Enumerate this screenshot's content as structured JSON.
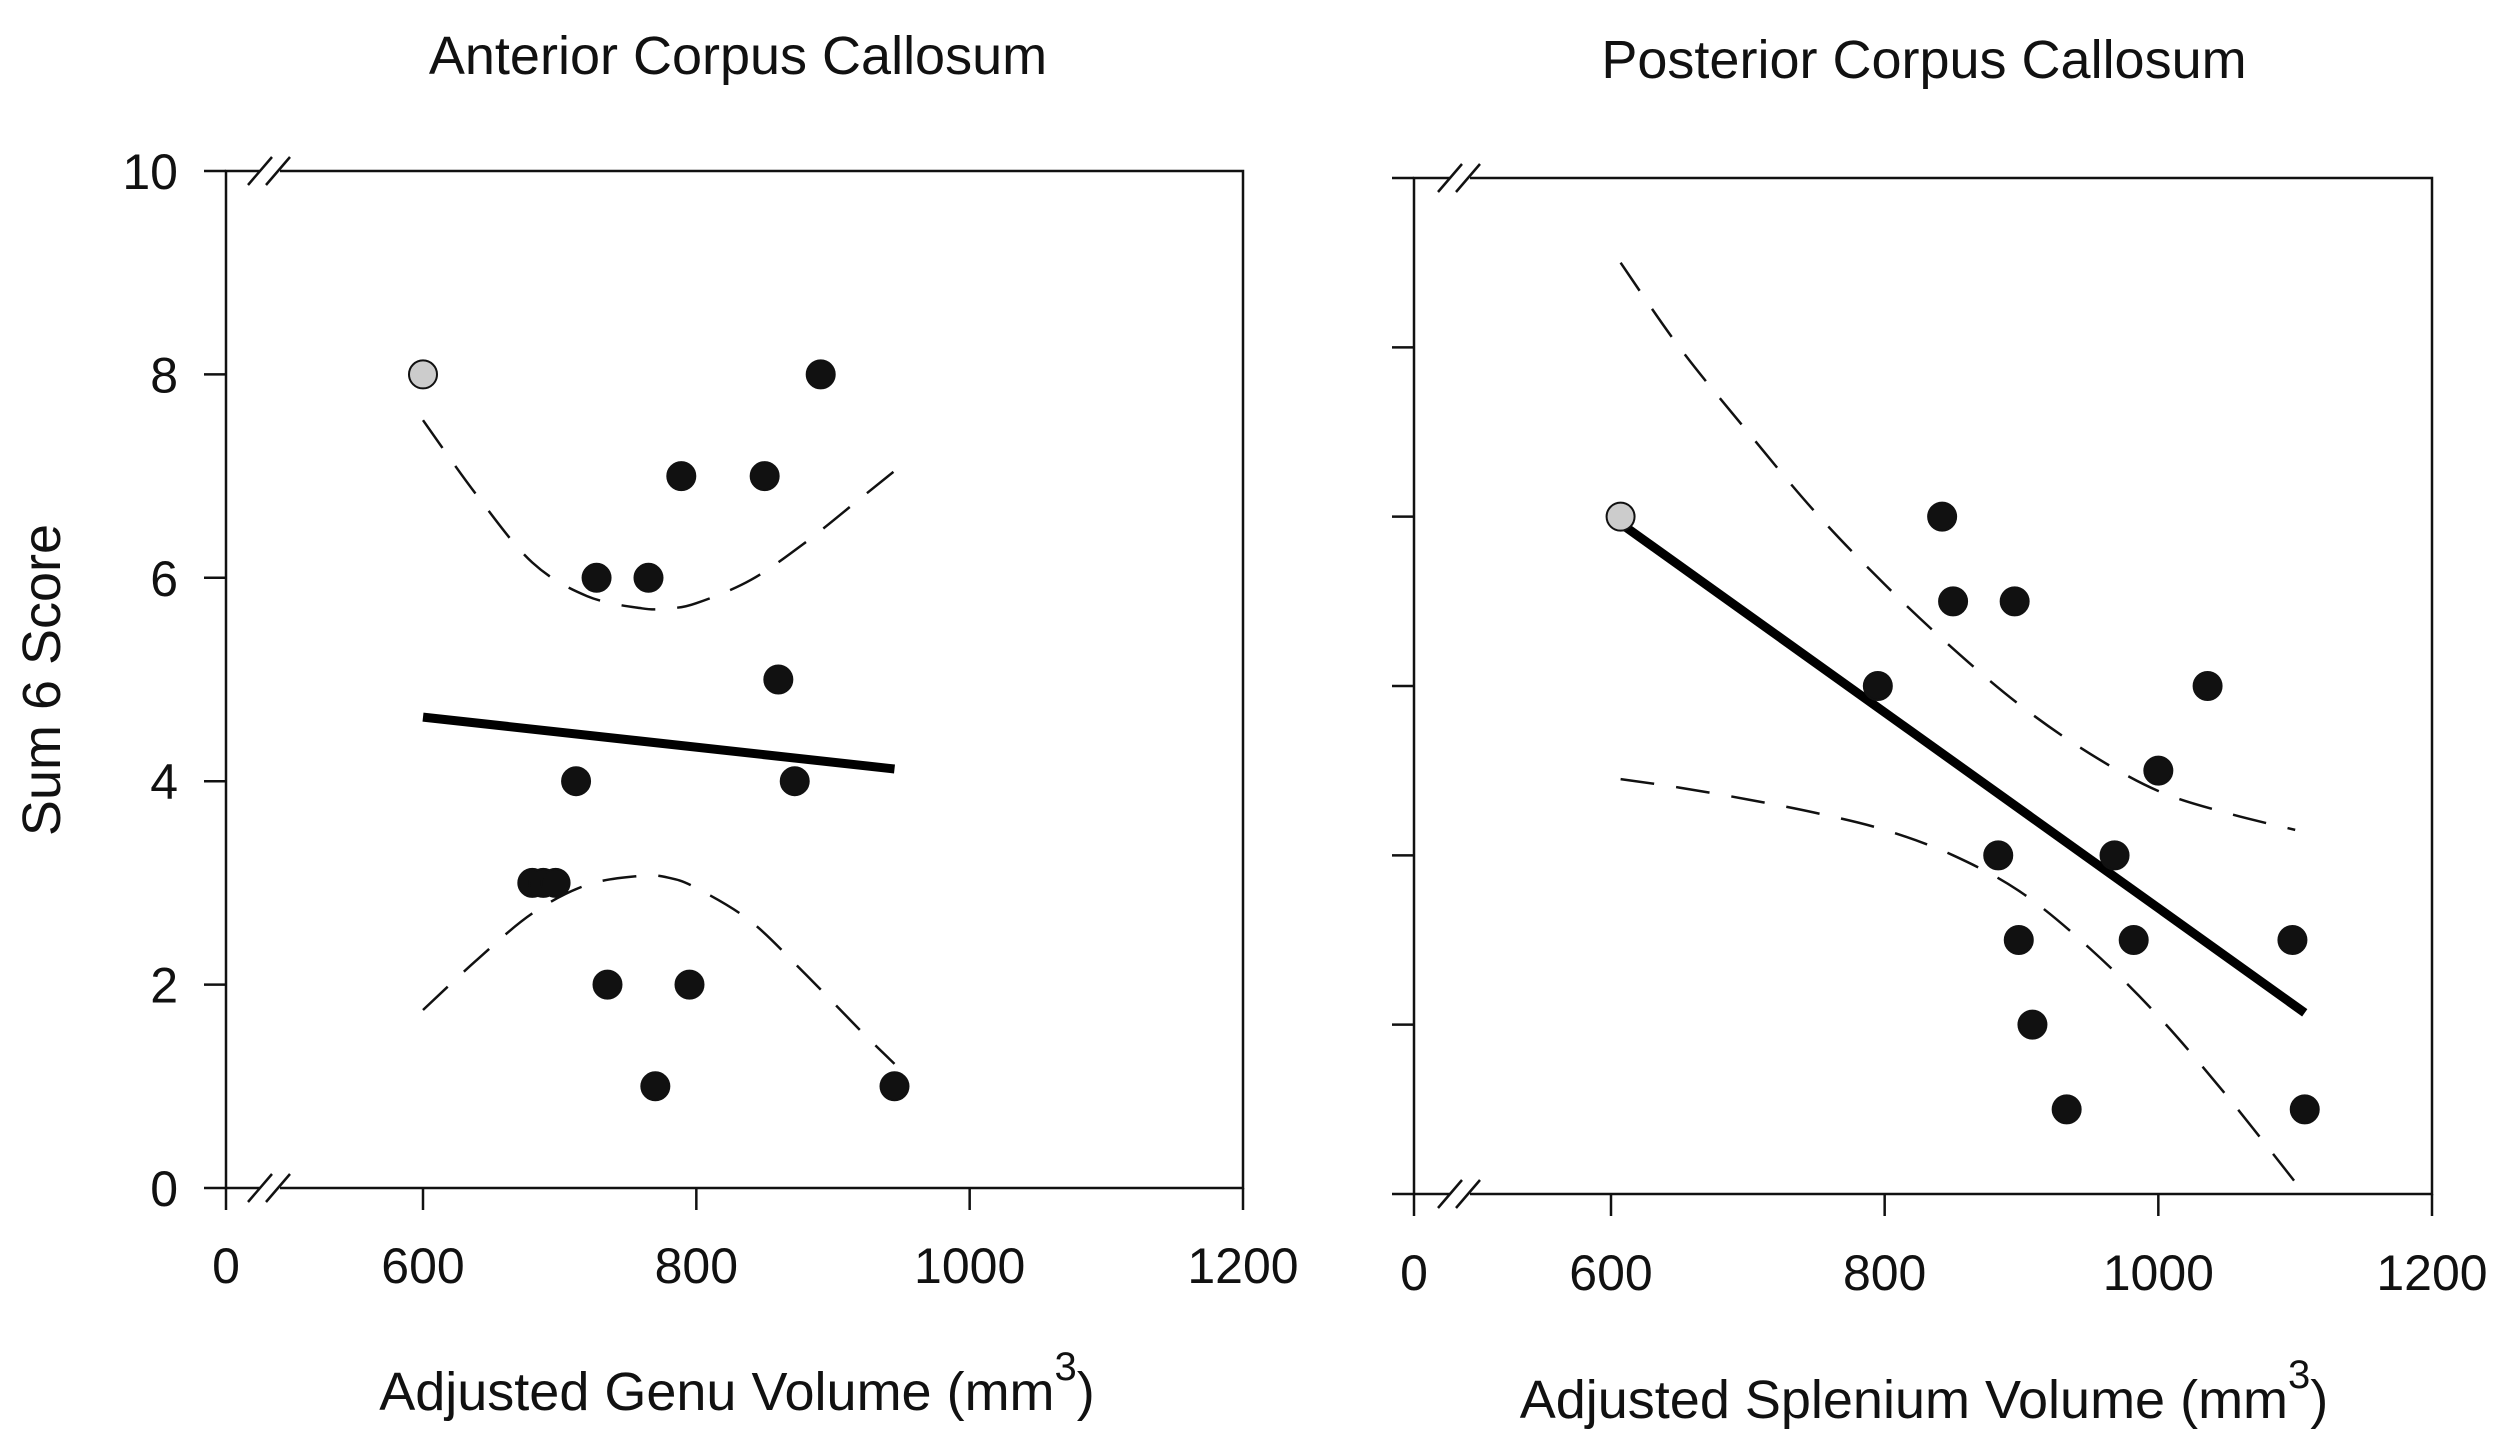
{
  "chart_data": [
    {
      "type": "scatter",
      "title": "Anterior Corpus Callosum",
      "xlabel": "Adjusted Genu Volume (mm",
      "xlabel_superscript": "3",
      "xlabel_suffix": ")",
      "ylabel": "Sum 6 Score",
      "xlim": [
        0,
        1200
      ],
      "ylim": [
        0,
        10
      ],
      "x_ticks": [
        0,
        600,
        800,
        1000,
        1200
      ],
      "x_tick_labels": [
        "0",
        "600",
        "800",
        "1000",
        "1200"
      ],
      "y_ticks": [
        0,
        2,
        4,
        6,
        8,
        10
      ],
      "y_tick_labels": [
        "0",
        "2",
        "4",
        "6",
        "8",
        "10"
      ],
      "show_y_tick_labels": true,
      "axis_break": true,
      "grid": false,
      "points": [
        {
          "x": 600,
          "y": 8,
          "color": "#cccccc"
        },
        {
          "x": 680,
          "y": 3,
          "color": "#111111"
        },
        {
          "x": 688,
          "y": 3,
          "color": "#111111"
        },
        {
          "x": 697,
          "y": 3,
          "color": "#111111"
        },
        {
          "x": 712,
          "y": 4,
          "color": "#111111"
        },
        {
          "x": 727,
          "y": 6,
          "color": "#111111"
        },
        {
          "x": 735,
          "y": 2,
          "color": "#111111"
        },
        {
          "x": 765,
          "y": 6,
          "color": "#111111"
        },
        {
          "x": 770,
          "y": 1,
          "color": "#111111"
        },
        {
          "x": 789,
          "y": 7,
          "color": "#111111"
        },
        {
          "x": 795,
          "y": 2,
          "color": "#111111"
        },
        {
          "x": 850,
          "y": 7,
          "color": "#111111"
        },
        {
          "x": 860,
          "y": 5,
          "color": "#111111"
        },
        {
          "x": 872,
          "y": 4,
          "color": "#111111"
        },
        {
          "x": 891,
          "y": 8,
          "color": "#111111"
        },
        {
          "x": 945,
          "y": 1,
          "color": "#111111"
        }
      ],
      "regression_line": {
        "x": [
          600,
          945
        ],
        "y": [
          4.63,
          4.12
        ]
      },
      "confidence_band_upper": {
        "x": [
          600,
          640,
          680,
          720,
          760,
          780,
          800,
          840,
          880,
          920,
          945
        ],
        "y": [
          7.55,
          6.8,
          6.15,
          5.82,
          5.7,
          5.7,
          5.75,
          5.98,
          6.35,
          6.78,
          7.05
        ]
      },
      "confidence_band_lower": {
        "x": [
          600,
          640,
          680,
          720,
          760,
          780,
          800,
          840,
          880,
          920,
          945
        ],
        "y": [
          1.75,
          2.25,
          2.7,
          2.98,
          3.07,
          3.05,
          2.95,
          2.62,
          2.1,
          1.55,
          1.22
        ]
      }
    },
    {
      "type": "scatter",
      "title": "Posterior Corpus Callosum",
      "xlabel": "Adjusted Splenium Volume (mm",
      "xlabel_superscript": "3",
      "xlabel_suffix": ")",
      "ylabel": "",
      "xlim": [
        0,
        1200
      ],
      "ylim": [
        0,
        6
      ],
      "x_ticks": [
        0,
        600,
        800,
        1000,
        1200
      ],
      "x_tick_labels": [
        "0",
        "600",
        "800",
        "1000",
        "1200"
      ],
      "y_ticks": [
        0,
        1,
        2,
        3,
        4,
        5,
        6
      ],
      "y_tick_labels": [],
      "show_y_tick_labels": false,
      "axis_break": true,
      "grid": false,
      "points": [
        {
          "x": 607,
          "y": 4,
          "color": "#cccccc"
        },
        {
          "x": 795,
          "y": 3,
          "color": "#111111"
        },
        {
          "x": 842,
          "y": 4,
          "color": "#111111"
        },
        {
          "x": 850,
          "y": 3.5,
          "color": "#111111"
        },
        {
          "x": 883,
          "y": 2,
          "color": "#111111"
        },
        {
          "x": 895,
          "y": 3.5,
          "color": "#111111"
        },
        {
          "x": 898,
          "y": 1.5,
          "color": "#111111"
        },
        {
          "x": 908,
          "y": 1,
          "color": "#111111"
        },
        {
          "x": 933,
          "y": 0.5,
          "color": "#111111"
        },
        {
          "x": 968,
          "y": 2,
          "color": "#111111"
        },
        {
          "x": 982,
          "y": 1.5,
          "color": "#111111"
        },
        {
          "x": 1000,
          "y": 2.5,
          "color": "#111111"
        },
        {
          "x": 1036,
          "y": 3,
          "color": "#111111"
        },
        {
          "x": 1098,
          "y": 1.5,
          "color": "#111111"
        },
        {
          "x": 1107,
          "y": 0.5,
          "color": "#111111"
        }
      ],
      "regression_line": {
        "x": [
          607,
          1107
        ],
        "y": [
          3.96,
          1.07
        ]
      },
      "confidence_band_upper": {
        "x": [
          607,
          650,
          700,
          750,
          800,
          850,
          900,
          950,
          1000,
          1050,
          1100
        ],
        "y": [
          5.5,
          5.0,
          4.5,
          4.02,
          3.6,
          3.22,
          2.88,
          2.6,
          2.38,
          2.25,
          2.15
        ]
      },
      "confidence_band_lower": {
        "x": [
          607,
          650,
          700,
          750,
          800,
          850,
          900,
          950,
          1000,
          1050,
          1100
        ],
        "y": [
          2.45,
          2.4,
          2.33,
          2.25,
          2.15,
          2.0,
          1.78,
          1.45,
          1.05,
          0.58,
          0.07
        ]
      }
    }
  ]
}
